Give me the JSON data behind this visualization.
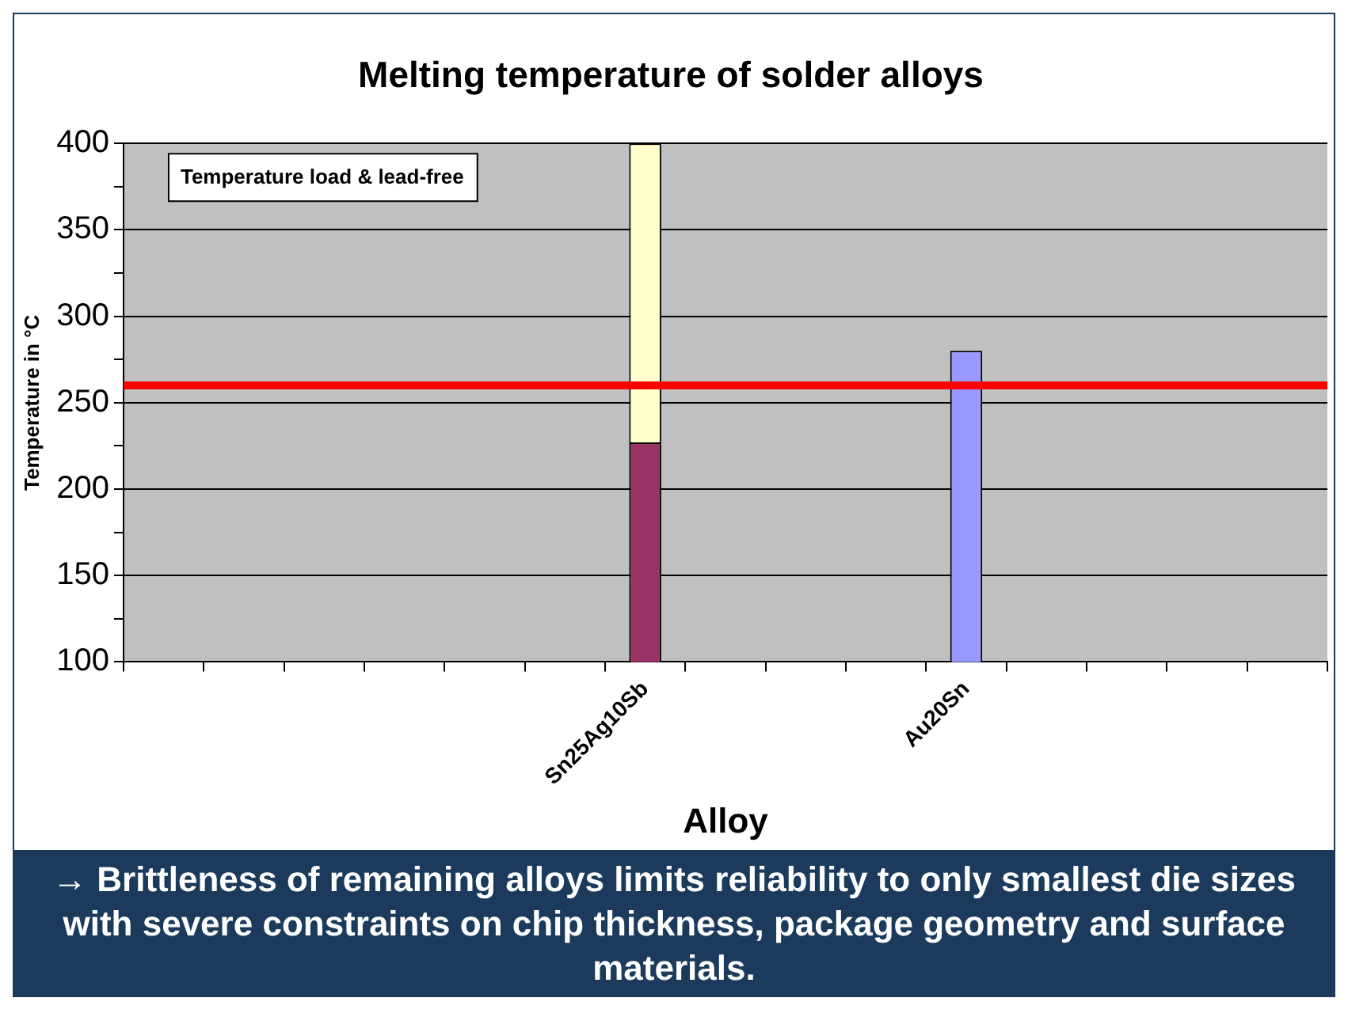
{
  "chart_data": {
    "type": "bar",
    "title": "Melting temperature of solder alloys",
    "xlabel": "Alloy",
    "ylabel": "Temperature in °C",
    "categories": [
      null,
      null,
      null,
      null,
      null,
      null,
      "Sn25Ag10Sb",
      null,
      null,
      null,
      "Au20Sn",
      null,
      null,
      null,
      null
    ],
    "series": [
      {
        "color": "#993366",
        "values": [
          null,
          null,
          null,
          null,
          null,
          null,
          227,
          null,
          null,
          null,
          null,
          null,
          null,
          null,
          null
        ]
      },
      {
        "color": "#ffffcc",
        "values": [
          null,
          null,
          null,
          null,
          null,
          null,
          173,
          null,
          null,
          null,
          null,
          null,
          null,
          null,
          null
        ]
      },
      {
        "color": "#9999ff",
        "values": [
          null,
          null,
          null,
          null,
          null,
          null,
          null,
          null,
          null,
          null,
          280,
          null,
          null,
          null,
          null
        ]
      }
    ],
    "stacked": true,
    "ylim": [
      100,
      400
    ],
    "yticks": [
      100,
      {
        "value": 125,
        "label": null
      },
      150,
      {
        "value": 175,
        "label": null
      },
      200,
      {
        "value": 225,
        "label": null
      },
      250,
      {
        "value": 275,
        "label": null
      },
      300,
      {
        "value": 325,
        "label": null
      },
      350,
      {
        "value": 375,
        "label": null
      },
      400
    ],
    "grid": "y",
    "legend": false,
    "ref_lines": [
      {
        "axis": "y",
        "value": 260,
        "color": "#ff0000"
      }
    ],
    "annotations": [
      "Temperature load & lead-free",
      "→ Brittleness of remaining alloys limits reliability to only smallest die sizes with severe constraints on chip thickness, package geometry and surface materials."
    ]
  }
}
